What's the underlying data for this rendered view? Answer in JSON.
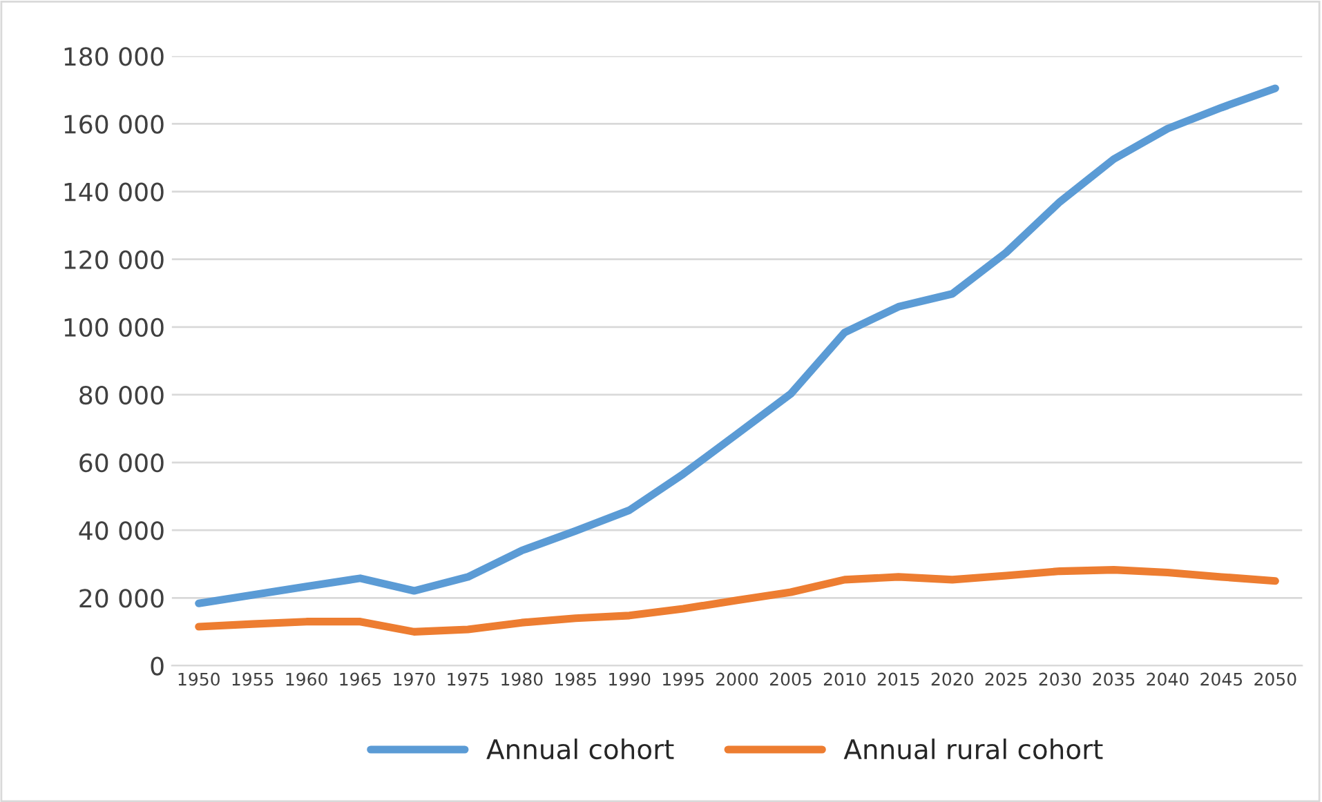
{
  "chart_data": {
    "type": "line",
    "categories": [
      "1950",
      "1955",
      "1960",
      "1965",
      "1970",
      "1975",
      "1980",
      "1985",
      "1990",
      "1995",
      "2000",
      "2005",
      "2010",
      "2015",
      "2020",
      "2025",
      "2030",
      "2035",
      "2040",
      "2045",
      "2050"
    ],
    "series": [
      {
        "name": "Annual cohort",
        "color": "#5b9bd5",
        "values": [
          18400,
          20900,
          23400,
          25800,
          22100,
          26200,
          34000,
          39800,
          45900,
          56600,
          68400,
          80300,
          98400,
          106000,
          109800,
          122000,
          137000,
          149600,
          158600,
          164800,
          170500
        ]
      },
      {
        "name": "Annual rural cohort",
        "color": "#ed7d31",
        "values": [
          11500,
          12300,
          13000,
          13000,
          10000,
          10700,
          12700,
          14000,
          14800,
          16800,
          19300,
          21700,
          25400,
          26200,
          25400,
          26600,
          27900,
          28300,
          27500,
          26200,
          25000
        ]
      }
    ],
    "ylim": [
      0,
      180000
    ],
    "yticks": [
      {
        "value": 0,
        "label": "0"
      },
      {
        "value": 20000,
        "label": "20 000"
      },
      {
        "value": 40000,
        "label": "40 000"
      },
      {
        "value": 60000,
        "label": "60 000"
      },
      {
        "value": 80000,
        "label": "80 000"
      },
      {
        "value": 100000,
        "label": "100 000"
      },
      {
        "value": 120000,
        "label": "120 000"
      },
      {
        "value": 140000,
        "label": "140 000"
      },
      {
        "value": 160000,
        "label": "160 000"
      },
      {
        "value": 180000,
        "label": "180 000"
      }
    ],
    "grid": "y",
    "legend": "bottom",
    "marker": "none",
    "line_style": "solid"
  }
}
